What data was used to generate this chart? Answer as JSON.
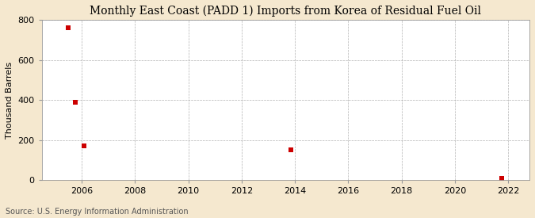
{
  "title": "Monthly East Coast (PADD 1) Imports from Korea of Residual Fuel Oil",
  "ylabel": "Thousand Barrels",
  "source": "Source: U.S. Energy Information Administration",
  "background_color": "#f5e8cf",
  "plot_background_color": "#ffffff",
  "grid_color": "#aaaaaa",
  "marker_color": "#cc0000",
  "xlim": [
    2004.5,
    2022.8
  ],
  "ylim": [
    0,
    800
  ],
  "xticks": [
    2006,
    2008,
    2010,
    2012,
    2014,
    2016,
    2018,
    2020,
    2022
  ],
  "yticks": [
    0,
    200,
    400,
    600,
    800
  ],
  "data_x": [
    2005.5,
    2005.75,
    2006.1,
    2013.85,
    2021.75
  ],
  "data_y": [
    760,
    390,
    170,
    150,
    10
  ],
  "marker_size": 4,
  "title_fontsize": 10,
  "ylabel_fontsize": 8,
  "tick_fontsize": 8,
  "source_fontsize": 7
}
